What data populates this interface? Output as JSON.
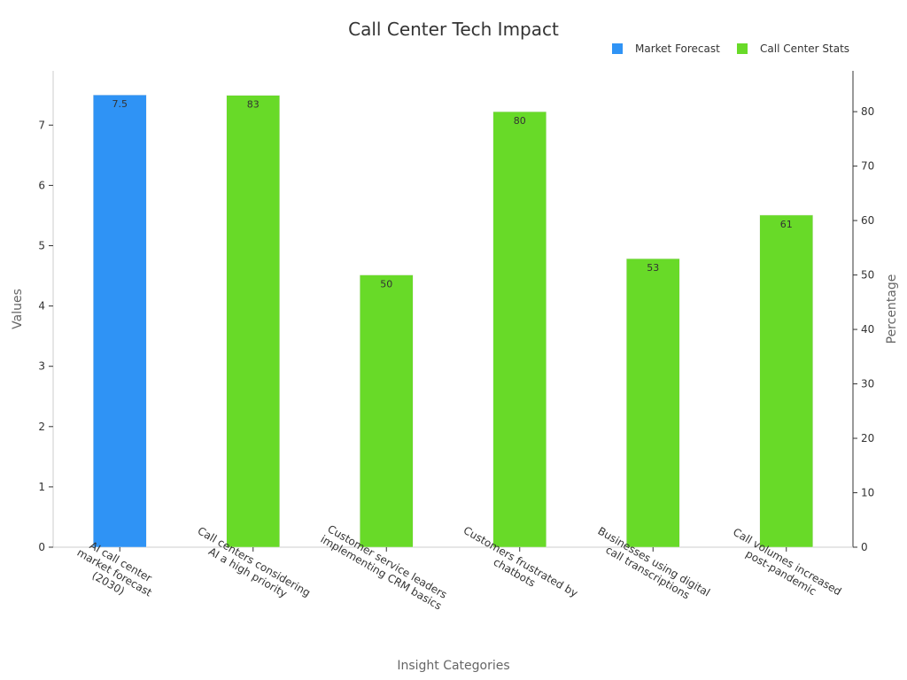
{
  "chart_data": {
    "type": "bar",
    "title": "Call Center Tech Impact",
    "xlabel": "Insight Categories",
    "ylabel": "Values",
    "y2label": "Percentage",
    "ylim": [
      0,
      7.9
    ],
    "y2lim": [
      0,
      87.5
    ],
    "yticks": [
      0,
      1,
      2,
      3,
      4,
      5,
      6,
      7
    ],
    "y2ticks": [
      0,
      10,
      20,
      30,
      40,
      50,
      60,
      70,
      80
    ],
    "legend_position": "top-right",
    "grid": false,
    "categories": [
      [
        "AI call center",
        "market forecast",
        "(2030)"
      ],
      [
        "Call centers considering",
        "AI a high priority"
      ],
      [
        "Customer service leaders",
        "implementing CRM basics"
      ],
      [
        "Customers frustrated by",
        "chatbots"
      ],
      [
        "Businesses using digital",
        "call transcriptions"
      ],
      [
        "Call volumes increased",
        "post-pandemic"
      ]
    ],
    "series": [
      {
        "name": "Market Forecast",
        "axis": "left",
        "color": "#2f93f5",
        "values": [
          7.5,
          null,
          null,
          null,
          null,
          null
        ],
        "labels": [
          "7.5",
          null,
          null,
          null,
          null,
          null
        ]
      },
      {
        "name": "Call Center Stats",
        "axis": "right",
        "color": "#68da28",
        "values": [
          null,
          83,
          50,
          80,
          53,
          61
        ],
        "labels": [
          null,
          "83",
          "50",
          "80",
          "53",
          "61"
        ]
      }
    ]
  }
}
